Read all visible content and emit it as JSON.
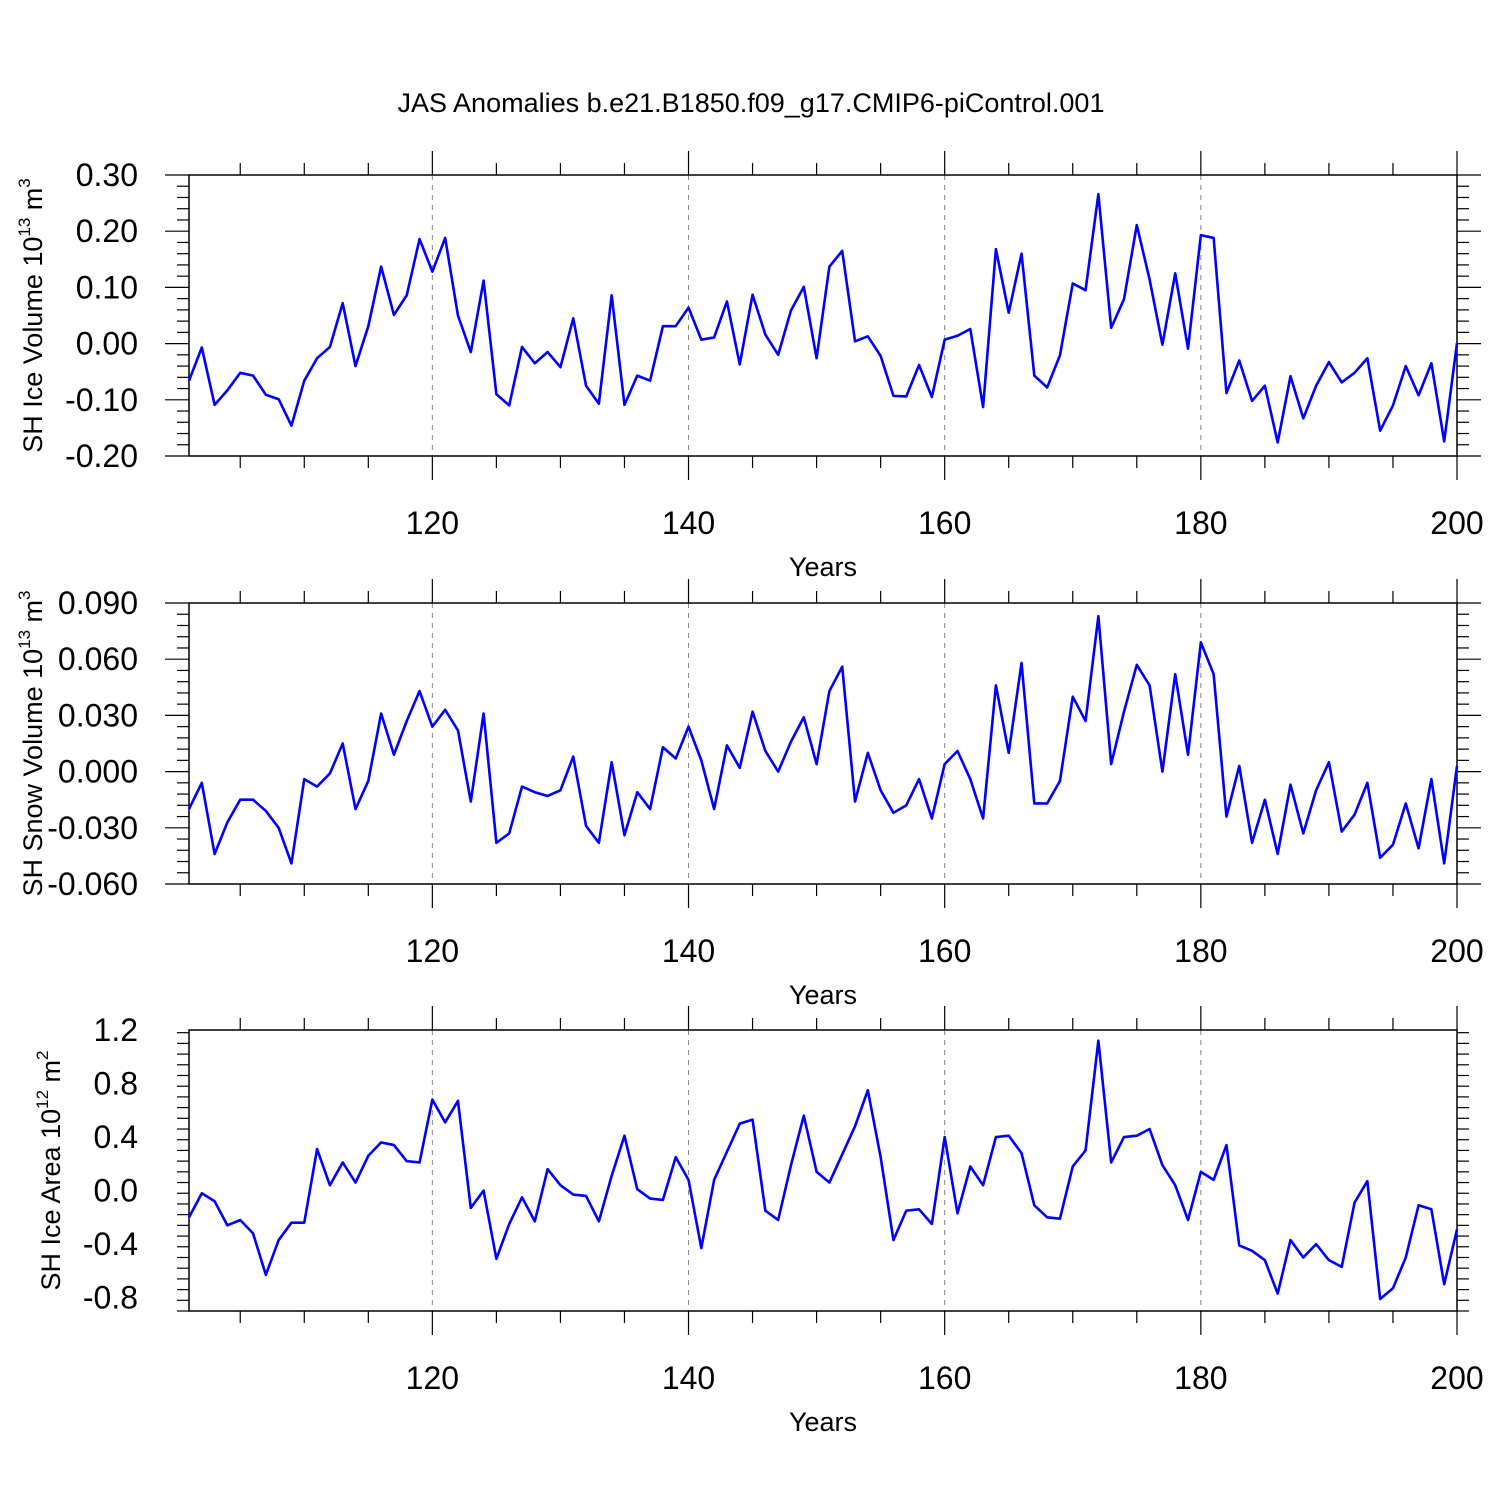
{
  "title": "JAS Anomalies b.e21.B1850.f09_g17.CMIP6-piControl.001",
  "line_color": "#0000ff",
  "chart_data": [
    {
      "type": "line",
      "ylabel_main": "SH Ice Volume 10",
      "ylabel_exp": "13",
      "ylabel_unit": " m",
      "ylabel_unit_exp": "3",
      "xlabel": "Years",
      "xlim": [
        101,
        200
      ],
      "ylim": [
        -0.2,
        0.3
      ],
      "yticks": [
        -0.2,
        -0.1,
        0.0,
        0.1,
        0.2,
        0.3
      ],
      "ytick_labels": [
        "-0.20",
        "-0.10",
        "0.00",
        "0.10",
        "0.20",
        "0.30"
      ],
      "xticks": [
        120,
        140,
        160,
        180,
        200
      ],
      "xtick_labels": [
        "120",
        "140",
        "160",
        "180",
        "200"
      ],
      "x_start": 101,
      "values": [
        -0.066,
        -0.007,
        -0.109,
        -0.083,
        -0.052,
        -0.057,
        -0.091,
        -0.099,
        -0.146,
        -0.066,
        -0.026,
        -0.006,
        0.072,
        -0.04,
        0.031,
        0.137,
        0.051,
        0.086,
        0.186,
        0.128,
        0.188,
        0.05,
        -0.015,
        0.112,
        -0.09,
        -0.11,
        -0.006,
        -0.035,
        -0.015,
        -0.042,
        0.045,
        -0.075,
        -0.107,
        0.086,
        -0.109,
        -0.057,
        -0.066,
        0.031,
        0.031,
        0.064,
        0.007,
        0.011,
        0.075,
        -0.037,
        0.087,
        0.016,
        -0.02,
        0.059,
        0.101,
        -0.026,
        0.137,
        0.165,
        0.004,
        0.013,
        -0.022,
        -0.093,
        -0.094,
        -0.038,
        -0.095,
        0.007,
        0.014,
        0.026,
        -0.113,
        0.168,
        0.055,
        0.16,
        -0.057,
        -0.078,
        -0.021,
        0.107,
        0.095,
        0.266,
        0.028,
        0.079,
        0.211,
        0.114,
        -0.002,
        0.125,
        -0.009,
        0.193,
        0.188,
        -0.088,
        -0.03,
        -0.102,
        -0.075,
        -0.176,
        -0.058,
        -0.133,
        -0.075,
        -0.033,
        -0.069,
        -0.052,
        -0.026,
        -0.155,
        -0.11,
        -0.04,
        -0.092,
        -0.035,
        -0.174,
        0.001
      ]
    },
    {
      "type": "line",
      "ylabel_main": "SH Snow Volume 10",
      "ylabel_exp": "13",
      "ylabel_unit": " m",
      "ylabel_unit_exp": "3",
      "xlabel": "Years",
      "xlim": [
        101,
        200
      ],
      "ylim": [
        -0.06,
        0.09
      ],
      "yticks": [
        -0.06,
        -0.03,
        0.0,
        0.03,
        0.06,
        0.09
      ],
      "ytick_labels": [
        "-0.060",
        "-0.030",
        "0.000",
        "0.030",
        "0.060",
        "0.090"
      ],
      "xticks": [
        120,
        140,
        160,
        180,
        200
      ],
      "xtick_labels": [
        "120",
        "140",
        "160",
        "180",
        "200"
      ],
      "x_start": 101,
      "values": [
        -0.02,
        -0.006,
        -0.044,
        -0.027,
        -0.015,
        -0.015,
        -0.021,
        -0.03,
        -0.049,
        -0.004,
        -0.008,
        -0.001,
        0.015,
        -0.02,
        -0.005,
        0.031,
        0.009,
        0.027,
        0.043,
        0.024,
        0.033,
        0.022,
        -0.016,
        0.031,
        -0.038,
        -0.033,
        -0.008,
        -0.011,
        -0.013,
        -0.01,
        0.008,
        -0.029,
        -0.038,
        0.005,
        -0.034,
        -0.011,
        -0.02,
        0.013,
        0.007,
        0.024,
        0.006,
        -0.02,
        0.014,
        0.002,
        0.032,
        0.011,
        0.0,
        0.016,
        0.029,
        0.004,
        0.043,
        0.056,
        -0.016,
        0.01,
        -0.01,
        -0.022,
        -0.018,
        -0.004,
        -0.025,
        0.004,
        0.011,
        -0.004,
        -0.025,
        0.046,
        0.01,
        0.058,
        -0.017,
        -0.017,
        -0.005,
        0.04,
        0.027,
        0.083,
        0.004,
        0.032,
        0.057,
        0.046,
        0.0,
        0.052,
        0.009,
        0.069,
        0.052,
        -0.024,
        0.003,
        -0.038,
        -0.015,
        -0.044,
        -0.007,
        -0.033,
        -0.01,
        0.005,
        -0.032,
        -0.023,
        -0.006,
        -0.046,
        -0.039,
        -0.017,
        -0.041,
        -0.004,
        -0.049,
        0.003
      ]
    },
    {
      "type": "line",
      "ylabel_main": "SH Ice Area 10",
      "ylabel_exp": "12",
      "ylabel_unit": " m",
      "ylabel_unit_exp": "2",
      "xlabel": "Years",
      "xlim": [
        101,
        200
      ],
      "ylim": [
        -0.9,
        1.2
      ],
      "yticks": [
        -0.8,
        -0.4,
        0.0,
        0.4,
        0.8,
        1.2
      ],
      "ytick_labels": [
        "-0.8",
        "-0.4",
        "0.0",
        "0.4",
        "0.8",
        "1.2"
      ],
      "xticks": [
        120,
        140,
        160,
        180,
        200
      ],
      "xtick_labels": [
        "120",
        "140",
        "160",
        "180",
        "200"
      ],
      "x_start": 101,
      "values": [
        -0.2,
        -0.02,
        -0.08,
        -0.26,
        -0.22,
        -0.32,
        -0.63,
        -0.37,
        -0.24,
        -0.24,
        0.31,
        0.04,
        0.21,
        0.06,
        0.26,
        0.36,
        0.34,
        0.22,
        0.21,
        0.68,
        0.51,
        0.67,
        -0.13,
        0.0,
        -0.51,
        -0.25,
        -0.05,
        -0.23,
        0.16,
        0.04,
        -0.03,
        -0.04,
        -0.23,
        0.11,
        0.41,
        0.01,
        -0.06,
        -0.07,
        0.25,
        0.08,
        -0.43,
        0.08,
        0.29,
        0.5,
        0.53,
        -0.15,
        -0.22,
        0.19,
        0.56,
        0.14,
        0.06,
        0.27,
        0.48,
        0.75,
        0.25,
        -0.37,
        -0.15,
        -0.14,
        -0.25,
        0.4,
        -0.17,
        0.18,
        0.04,
        0.4,
        0.41,
        0.28,
        -0.11,
        -0.2,
        -0.21,
        0.18,
        0.3,
        1.12,
        0.21,
        0.4,
        0.41,
        0.46,
        0.19,
        0.04,
        -0.22,
        0.14,
        0.08,
        0.34,
        -0.41,
        -0.45,
        -0.52,
        -0.77,
        -0.37,
        -0.5,
        -0.4,
        -0.52,
        -0.57,
        -0.09,
        0.07,
        -0.81,
        -0.73,
        -0.5,
        -0.11,
        -0.14,
        -0.7,
        -0.29
      ]
    }
  ]
}
